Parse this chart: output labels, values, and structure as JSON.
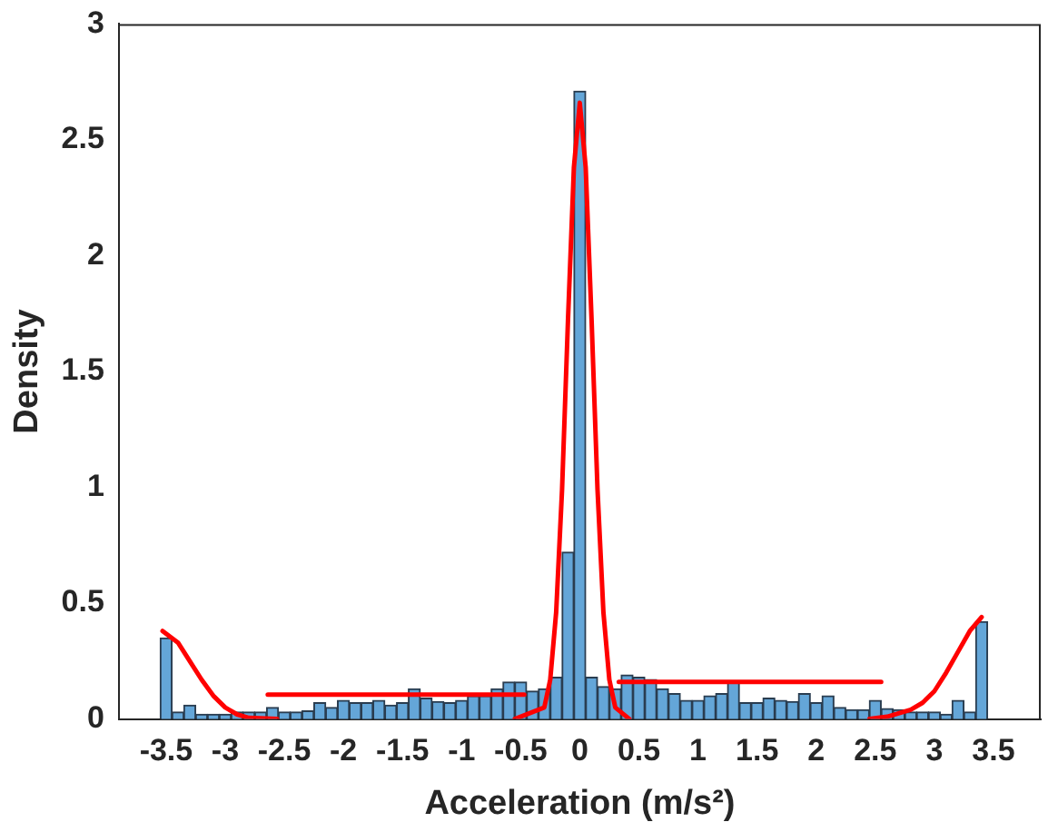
{
  "chart_data": {
    "type": "histogram",
    "xlabel": "Acceleration (m/s²)",
    "ylabel": "Density",
    "color": "#64a6d8",
    "bins": [
      -3.55,
      -3.45,
      -3.35,
      -3.25,
      -3.15,
      -3.05,
      -2.95,
      -2.85,
      -2.75,
      -2.65,
      -2.55,
      -2.45,
      -2.35,
      -2.25,
      -2.15,
      -2.05,
      -1.95,
      -1.85,
      -1.75,
      -1.65,
      -1.55,
      -1.45,
      -1.35,
      -1.25,
      -1.15,
      -1.05,
      -0.95,
      -0.85,
      -0.75,
      -0.65,
      -0.55,
      -0.45,
      -0.35,
      -0.25,
      -0.15,
      -0.05,
      0.05,
      0.15,
      0.25,
      0.35,
      0.45,
      0.55,
      0.65,
      0.75,
      0.85,
      0.95,
      1.05,
      1.15,
      1.25,
      1.35,
      1.45,
      1.55,
      1.65,
      1.75,
      1.85,
      1.95,
      2.05,
      2.15,
      2.25,
      2.35,
      2.45,
      2.55,
      2.65,
      2.75,
      2.85,
      2.95,
      3.05,
      3.15,
      3.25,
      3.35,
      3.45
    ],
    "values": [
      0.35,
      0.03,
      0.06,
      0.02,
      0.02,
      0.02,
      0.03,
      0.03,
      0.03,
      0.05,
      0.03,
      0.03,
      0.035,
      0.07,
      0.05,
      0.08,
      0.07,
      0.07,
      0.08,
      0.06,
      0.07,
      0.13,
      0.09,
      0.075,
      0.07,
      0.08,
      0.1,
      0.1,
      0.13,
      0.16,
      0.16,
      0.12,
      0.13,
      0.18,
      0.72,
      2.71,
      0.18,
      0.14,
      0.13,
      0.19,
      0.18,
      0.17,
      0.13,
      0.11,
      0.08,
      0.08,
      0.1,
      0.11,
      0.16,
      0.07,
      0.07,
      0.09,
      0.08,
      0.075,
      0.11,
      0.07,
      0.1,
      0.05,
      0.04,
      0.04,
      0.08,
      0.045,
      0.04,
      0.03,
      0.03,
      0.03,
      0.02,
      0.08,
      0.03,
      0.42
    ],
    "series": [
      {
        "type": "line",
        "color": "#ff0000",
        "x": [
          -3.53,
          -3.4,
          -3.3,
          -3.2,
          -3.1,
          -3.0,
          -2.9,
          -2.8,
          -2.56
        ],
        "values": [
          0.38,
          0.33,
          0.25,
          0.17,
          0.1,
          0.05,
          0.02,
          0.005,
          0
        ]
      },
      {
        "type": "line",
        "color": "#ff0000",
        "x": [
          -2.64,
          -0.47
        ],
        "values": [
          0.105,
          0.105
        ]
      },
      {
        "type": "line",
        "color": "#ff0000",
        "x": [
          -0.55,
          -0.3,
          -0.25,
          -0.2,
          -0.15,
          -0.1,
          -0.05,
          0,
          0.05,
          0.1,
          0.15,
          0.2,
          0.25,
          0.3,
          0.42
        ],
        "values": [
          0,
          0.05,
          0.17,
          0.46,
          0.99,
          1.72,
          2.38,
          2.66,
          2.38,
          1.72,
          0.99,
          0.46,
          0.17,
          0.05,
          0
        ]
      },
      {
        "type": "line",
        "color": "#ff0000",
        "x": [
          0.33,
          2.55
        ],
        "values": [
          0.16,
          0.16
        ]
      },
      {
        "type": "line",
        "color": "#ff0000",
        "x": [
          2.45,
          2.6,
          2.8,
          2.9,
          3.0,
          3.1,
          3.2,
          3.3,
          3.4
        ],
        "values": [
          0,
          0.01,
          0.04,
          0.07,
          0.12,
          0.2,
          0.29,
          0.38,
          0.44
        ]
      }
    ],
    "xlim": [
      -3.9,
      3.9
    ],
    "xticks": [
      -3.5,
      -3,
      -2.5,
      -2,
      -1.5,
      -1,
      -0.5,
      0,
      0.5,
      1,
      1.5,
      2,
      2.5,
      3,
      3.5
    ],
    "ylim": [
      0,
      3
    ],
    "yticks": [
      0,
      0.5,
      1,
      1.5,
      2,
      2.5,
      3
    ]
  }
}
